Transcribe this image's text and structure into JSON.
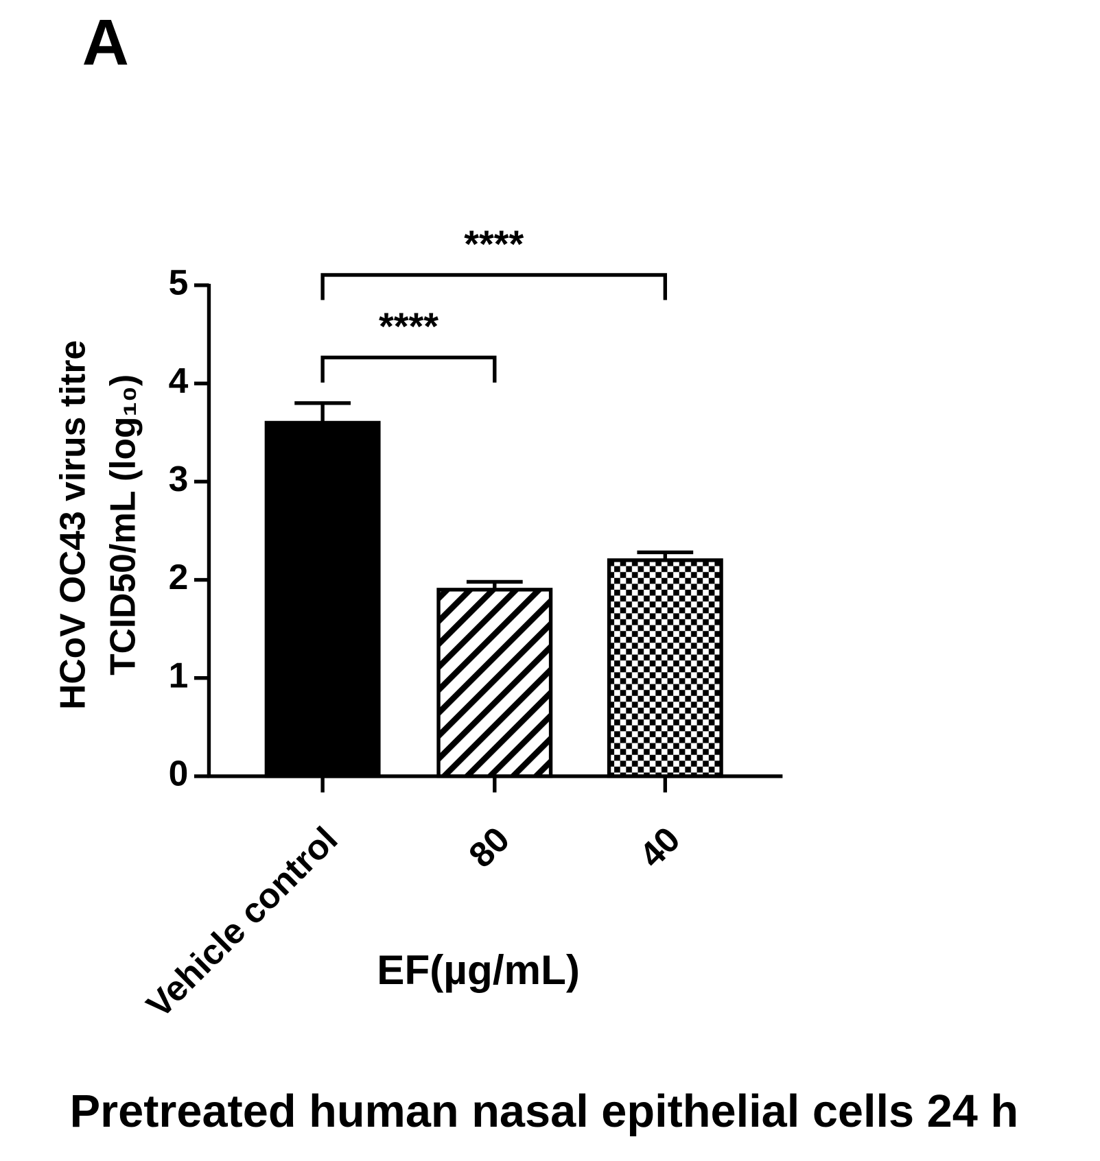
{
  "chart_data": {
    "type": "bar",
    "panel_label": "A",
    "title": "Pretreated human nasal epithelial cells 24 h",
    "xlabel": "EF(µg/mL)",
    "ylabel": [
      "HCoV OC43 virus titre",
      "TCID50/mL (log₁₀)"
    ],
    "categories": [
      "Vehicle  control",
      "80",
      "40"
    ],
    "values": [
      3.6,
      1.9,
      2.2
    ],
    "errors": [
      0.2,
      0.08,
      0.08
    ],
    "patterns": [
      "solid",
      "hatch",
      "check"
    ],
    "color": "#000000",
    "ylim": [
      0,
      5
    ],
    "yticks": [
      0,
      1,
      2,
      3,
      4,
      5
    ],
    "comparisons": [
      {
        "from": 0,
        "to": 1,
        "label": "****"
      },
      {
        "from": 0,
        "to": 2,
        "label": "****"
      }
    ]
  }
}
